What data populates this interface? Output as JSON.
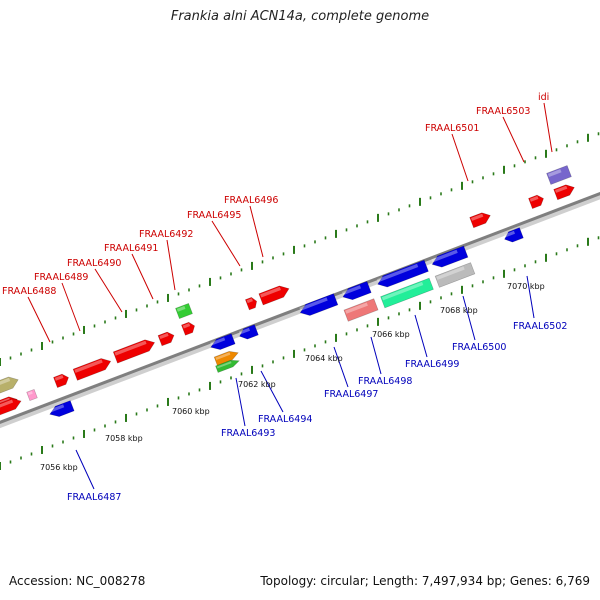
{
  "title": "Frankia alni ACN14a, complete genome",
  "footer": {
    "accession": "Accession: NC_008278",
    "summary": "Topology: circular; Length: 7,497,934 bp; Genes: 6,769"
  },
  "colors": {
    "forward_gene": "#ee0000",
    "reverse_gene": "#0000dd",
    "backbone": "#8a8a8a",
    "tick": "#2a7a1a",
    "top_label": "#cc0000",
    "bottom_label": "#0000bb"
  },
  "kbp_labels": [
    "7056 kbp",
    "7058 kbp",
    "7060 kbp",
    "7062 kbp",
    "7064 kbp",
    "7066 kbp",
    "7068 kbp",
    "7070 kbp"
  ],
  "top_gene_labels": [
    "FRAAL6488",
    "FRAAL6489",
    "FRAAL6490",
    "FRAAL6491",
    "FRAAL6492",
    "FRAAL6495",
    "FRAAL6496",
    "FRAAL6501",
    "FRAAL6503",
    "idi"
  ],
  "bottom_gene_labels": [
    "FRAAL6487",
    "FRAAL6493",
    "FRAAL6494",
    "FRAAL6497",
    "FRAAL6498",
    "FRAAL6499",
    "FRAAL6500",
    "FRAAL6502"
  ]
}
